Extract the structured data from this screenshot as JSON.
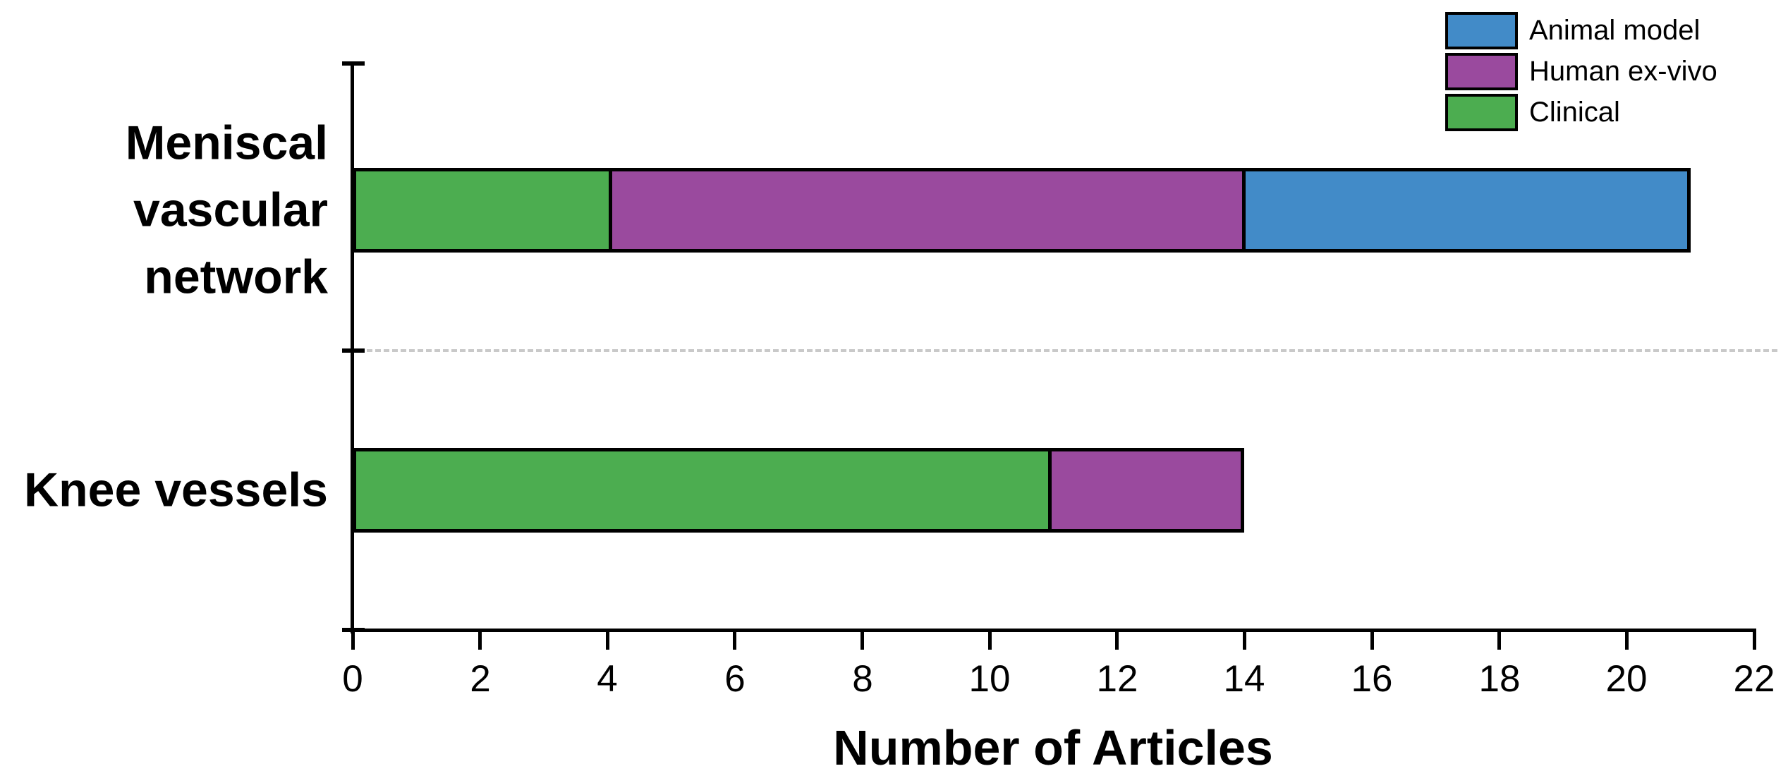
{
  "figure": {
    "background_color": "#FFFFFF",
    "axis_color": "#000000",
    "separator_color": "#C9C9C9"
  },
  "chart_data": {
    "type": "bar",
    "orientation": "horizontal",
    "stacked": true,
    "title": "",
    "xlabel": "Number of Articles",
    "ylabel": "",
    "xlim": [
      0,
      22
    ],
    "x_ticks": [
      0,
      2,
      4,
      6,
      8,
      10,
      12,
      14,
      16,
      18,
      20,
      22
    ],
    "grid": false,
    "categories": [
      "Meniscal vascular network",
      "Knee vessels"
    ],
    "series": [
      {
        "name": "Animal model",
        "color": "#428BC8",
        "values": [
          7,
          0
        ]
      },
      {
        "name": "Human ex-vivo",
        "color": "#9A4A9E",
        "values": [
          10,
          3
        ]
      },
      {
        "name": "Clinical",
        "color": "#4CAD50",
        "values": [
          4,
          11
        ]
      }
    ],
    "stack_left_to_right": [
      "Clinical",
      "Human ex-vivo",
      "Animal model"
    ],
    "totals": [
      21,
      14
    ],
    "legend_position": "top-right",
    "legend_items": [
      "Animal model",
      "Human ex-vivo",
      "Clinical"
    ]
  }
}
